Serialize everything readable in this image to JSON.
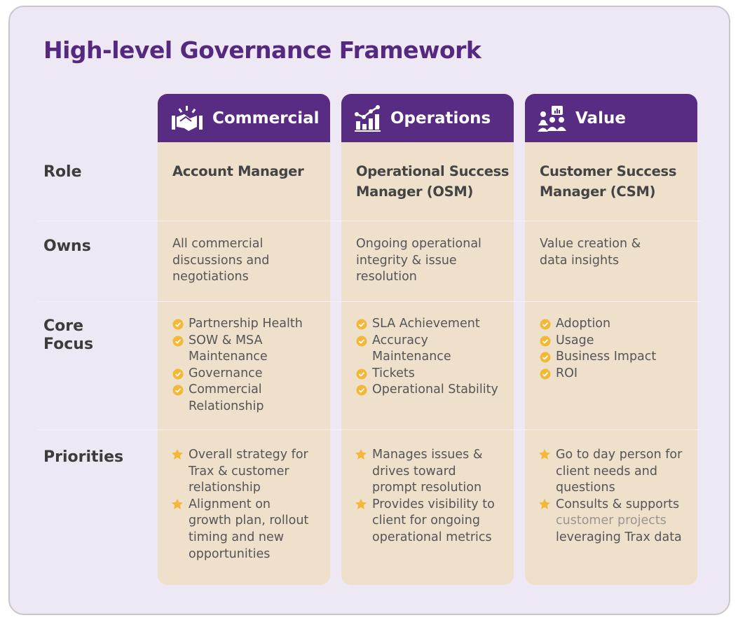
{
  "title": "High-level Governance Framework",
  "row_labels": {
    "role": "Role",
    "owns": "Owns",
    "core_focus_1": "Core",
    "core_focus_2": "Focus",
    "priorities": "Priorities"
  },
  "colors": {
    "header": "#582c83",
    "title": "#55297f",
    "column_bg": "#efe0cc",
    "accent": "#f2b836",
    "background": "#ede8f3"
  },
  "columns": [
    {
      "header": "Commercial",
      "icon": "handshake-icon",
      "role": "Account Manager",
      "owns": "All commercial discussions and negotiations",
      "core_focus": [
        "Partnership Health",
        "SOW & MSA Maintenance",
        "Governance",
        "Commercial Relationship"
      ],
      "priorities": [
        "Overall strategy for Trax & customer relationship",
        "Alignment on growth plan, rollout timing and new opportunities"
      ]
    },
    {
      "header": "Operations",
      "icon": "bar-chart-icon",
      "role": "Operational Success Manager (OSM)",
      "owns": "Ongoing operational integrity & issue resolution",
      "core_focus": [
        "SLA Achievement",
        "Accuracy Maintenance",
        "Tickets",
        "Operational Stability"
      ],
      "priorities": [
        "Manages issues & drives toward prompt resolution",
        "Provides visibility to client for ongoing operational metrics"
      ]
    },
    {
      "header": "Value",
      "icon": "team-icon",
      "role": "Customer Success Manager (CSM)",
      "owns": "Value creation & data insights",
      "core_focus": [
        "Adoption",
        "Usage",
        "Business Impact",
        "ROI"
      ],
      "priorities": [
        "Go to day person for client needs and questions",
        "Consults & supports",
        "customer projects",
        "leveraging Trax data"
      ]
    }
  ]
}
